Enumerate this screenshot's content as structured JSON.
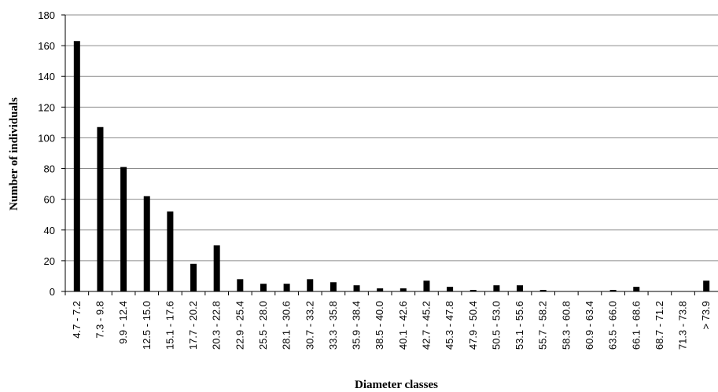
{
  "chart_data": {
    "type": "bar",
    "xlabel": "Diameter classes",
    "ylabel": "Number of individuals",
    "ylim": [
      0,
      180
    ],
    "yticks": [
      0,
      20,
      40,
      60,
      80,
      100,
      120,
      140,
      160,
      180
    ],
    "grid": true,
    "legend": "none",
    "bar_color": "#000000",
    "grid_color": "#8c8c8c",
    "categories": [
      "4.7 - 7.2",
      "7.3 - 9.8",
      "9.9 - 12.4",
      "12.5 - 15.0",
      "15.1 - 17.6",
      "17.7 - 20.2",
      "20.3 - 22.8",
      "22.9 - 25.4",
      "25.5 - 28.0",
      "28.1 - 30.6",
      "30.7 - 33.2",
      "33.3 - 35.8",
      "35.9 - 38.4",
      "38.5 - 40.0",
      "40.1 - 42.6",
      "42.7 - 45.2",
      "45.3 - 47.8",
      "47.9 - 50.4",
      "50.5 - 53.0",
      "53.1 - 55.6",
      "55.7 - 58.2",
      "58.3 - 60.8",
      "60.9 - 63.4",
      "63.5 - 66.0",
      "66.1 - 68.6",
      "68.7 - 71.2",
      "71.3 - 73.8",
      "> 73.9"
    ],
    "values": [
      163,
      107,
      81,
      62,
      52,
      18,
      30,
      8,
      5,
      5,
      8,
      6,
      4,
      2,
      2,
      7,
      3,
      1,
      4,
      4,
      1,
      0,
      0,
      1,
      3,
      0,
      0,
      7
    ]
  }
}
